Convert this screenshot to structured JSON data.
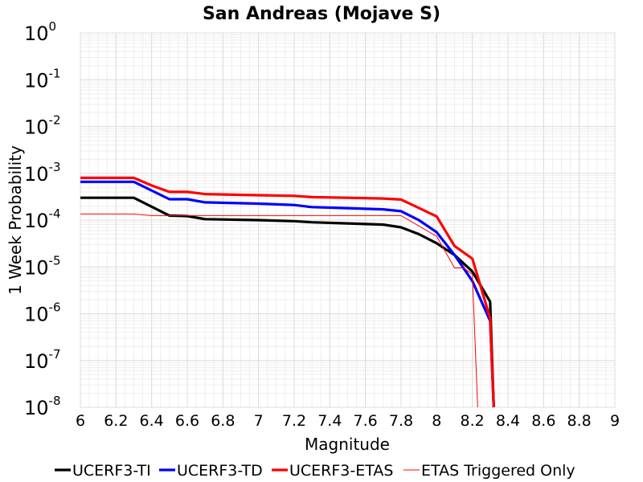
{
  "chart_data": {
    "type": "line",
    "title": "San Andreas (Mojave S)",
    "xlabel": "Magnitude",
    "ylabel": "1 Week Probability",
    "xlim": [
      6,
      9
    ],
    "ylim": [
      1e-08,
      1
    ],
    "yscale": "log",
    "grid": true,
    "legend_position": "bottom",
    "x_ticks": [
      "6",
      "6.2",
      "6.4",
      "6.6",
      "6.8",
      "7",
      "7.2",
      "7.4",
      "7.6",
      "7.8",
      "8",
      "8.2",
      "8.4",
      "8.6",
      "8.8",
      "9"
    ],
    "y_ticks": [
      {
        "base": "10",
        "exp": "0"
      },
      {
        "base": "10",
        "exp": "-1"
      },
      {
        "base": "10",
        "exp": "-2"
      },
      {
        "base": "10",
        "exp": "-3"
      },
      {
        "base": "10",
        "exp": "-4"
      },
      {
        "base": "10",
        "exp": "-5"
      },
      {
        "base": "10",
        "exp": "-6"
      },
      {
        "base": "10",
        "exp": "-7"
      },
      {
        "base": "10",
        "exp": "-8"
      }
    ],
    "series": [
      {
        "name": "UCERF3-TI",
        "color": "#000000",
        "points": [
          [
            6.0,
            0.0003
          ],
          [
            6.3,
            0.0003
          ],
          [
            6.5,
            0.000125
          ],
          [
            6.6,
            0.000122
          ],
          [
            6.7,
            0.000105
          ],
          [
            7.0,
            0.0001
          ],
          [
            7.2,
            9.5e-05
          ],
          [
            7.3,
            9e-05
          ],
          [
            7.5,
            8.5e-05
          ],
          [
            7.7,
            8e-05
          ],
          [
            7.8,
            7e-05
          ],
          [
            7.9,
            5e-05
          ],
          [
            8.0,
            3.2e-05
          ],
          [
            8.1,
            1.8e-05
          ],
          [
            8.2,
            8e-06
          ],
          [
            8.3,
            1.8e-06
          ],
          [
            8.32,
            1e-08
          ]
        ]
      },
      {
        "name": "UCERF3-TD",
        "color": "#0000ff",
        "points": [
          [
            6.0,
            0.00066
          ],
          [
            6.3,
            0.00066
          ],
          [
            6.5,
            0.00028
          ],
          [
            6.6,
            0.00028
          ],
          [
            6.7,
            0.00024
          ],
          [
            7.0,
            0.000225
          ],
          [
            7.2,
            0.00021
          ],
          [
            7.3,
            0.00019
          ],
          [
            7.5,
            0.00018
          ],
          [
            7.7,
            0.00017
          ],
          [
            7.8,
            0.000155
          ],
          [
            7.9,
            0.0001
          ],
          [
            8.0,
            5.5e-05
          ],
          [
            8.1,
            1.8e-05
          ],
          [
            8.2,
            5e-06
          ],
          [
            8.3,
            7e-07
          ],
          [
            8.32,
            1e-08
          ]
        ]
      },
      {
        "name": "UCERF3-ETAS",
        "color": "#ff0000",
        "points": [
          [
            6.0,
            0.0008
          ],
          [
            6.3,
            0.0008
          ],
          [
            6.4,
            0.00055
          ],
          [
            6.5,
            0.0004
          ],
          [
            6.6,
            0.0004
          ],
          [
            6.7,
            0.00036
          ],
          [
            7.0,
            0.00034
          ],
          [
            7.2,
            0.00033
          ],
          [
            7.3,
            0.00031
          ],
          [
            7.5,
            0.0003
          ],
          [
            7.7,
            0.00029
          ],
          [
            7.8,
            0.000275
          ],
          [
            8.0,
            0.00012
          ],
          [
            8.1,
            2.8e-05
          ],
          [
            8.2,
            1.5e-05
          ],
          [
            8.3,
            8e-07
          ],
          [
            8.32,
            1e-08
          ]
        ]
      },
      {
        "name": "ETAS Triggered Only",
        "color": "#ff0000",
        "thin": true,
        "points": [
          [
            6.0,
            0.000135
          ],
          [
            6.3,
            0.000135
          ],
          [
            6.4,
            0.000125
          ],
          [
            7.8,
            0.000125
          ],
          [
            8.0,
            4.5e-05
          ],
          [
            8.1,
            9.5e-06
          ],
          [
            8.15,
            9.5e-06
          ],
          [
            8.2,
            7e-06
          ],
          [
            8.23,
            1e-08
          ]
        ]
      }
    ]
  }
}
